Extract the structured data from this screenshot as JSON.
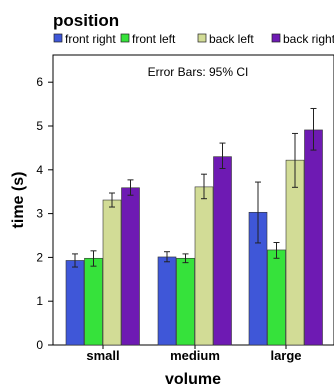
{
  "chart_data": {
    "type": "bar",
    "legend_title": "position",
    "legend_position": "top",
    "annotation": "Error Bars: 95% CI",
    "xlabel": "volume",
    "ylabel": "time (s)",
    "ylim": [
      0,
      6.6
    ],
    "yticks": [
      0,
      1,
      2,
      3,
      4,
      5,
      6
    ],
    "grid": false,
    "categories": [
      "small",
      "medium",
      "large"
    ],
    "series": [
      {
        "name": "front right",
        "color": "#3f57d8",
        "values": [
          1.93,
          2.01,
          3.03
        ],
        "ci": [
          [
            1.78,
            2.08
          ],
          [
            1.9,
            2.13
          ],
          [
            2.33,
            3.72
          ]
        ]
      },
      {
        "name": "front left",
        "color": "#36e23b",
        "values": [
          1.98,
          1.98,
          2.17
        ],
        "ci": [
          [
            1.8,
            2.15
          ],
          [
            1.88,
            2.08
          ],
          [
            1.98,
            2.34
          ]
        ]
      },
      {
        "name": "back left",
        "color": "#d2dc96",
        "values": [
          3.31,
          3.61,
          4.22
        ],
        "ci": [
          [
            3.15,
            3.47
          ],
          [
            3.34,
            3.9
          ],
          [
            3.6,
            4.83
          ]
        ]
      },
      {
        "name": "back right",
        "color": "#6e1ab3",
        "values": [
          3.59,
          4.3,
          4.91
        ],
        "ci": [
          [
            3.42,
            3.77
          ],
          [
            4.03,
            4.61
          ],
          [
            4.45,
            5.4
          ]
        ]
      }
    ]
  }
}
